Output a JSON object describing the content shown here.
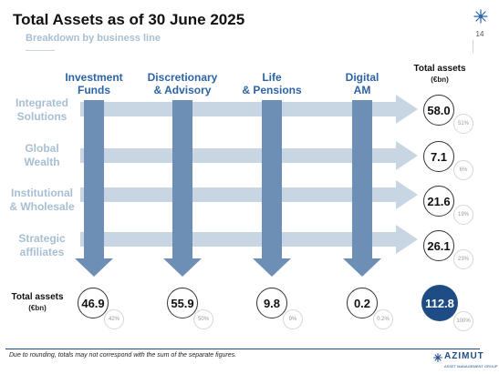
{
  "header": {
    "title": "Total Assets as of 30 June 2025",
    "subtitle": "Breakdown by business line",
    "page_number": "14"
  },
  "columns": [
    {
      "line1": "Investment",
      "line2": "Funds"
    },
    {
      "line1": "Discretionary",
      "line2": "& Advisory"
    },
    {
      "line1": "Life",
      "line2": "& Pensions"
    },
    {
      "line1": "Digital",
      "line2": "AM"
    }
  ],
  "rows": [
    {
      "line1": "Integrated",
      "line2": "Solutions",
      "total": "58.0",
      "pct": "51%"
    },
    {
      "line1": "Global",
      "line2": "Wealth",
      "total": "7.1",
      "pct": "6%"
    },
    {
      "line1": "Institutional",
      "line2": "& Wholesale",
      "total": "21.6",
      "pct": "19%"
    },
    {
      "line1": "Strategic",
      "line2": "affiliates",
      "total": "26.1",
      "pct": "23%"
    }
  ],
  "row_total_header": {
    "label": "Total assets",
    "unit": "(€bn)"
  },
  "column_total_header": {
    "label": "Total assets",
    "unit": "(€bn)"
  },
  "column_totals": [
    {
      "value": "46.9",
      "pct": "42%"
    },
    {
      "value": "55.9",
      "pct": "50%"
    },
    {
      "value": "9.8",
      "pct": "9%"
    },
    {
      "value": "0.2",
      "pct": "0.2%"
    }
  ],
  "grand_total": {
    "value": "112.8",
    "pct": "100%"
  },
  "footnote": "Due to rounding, totals may not correspond with the sum of the separate figures.",
  "logo": {
    "name": "AZIMUT",
    "tagline": "ASSET MANAGEMENT GROUP"
  },
  "colors": {
    "accent": "#2c64a6",
    "column_arrow": "#6e8fb5",
    "row_arrow": "#c8d6e3",
    "label_light": "#a7bfd3",
    "grand_total_fill": "#1e4d85"
  }
}
